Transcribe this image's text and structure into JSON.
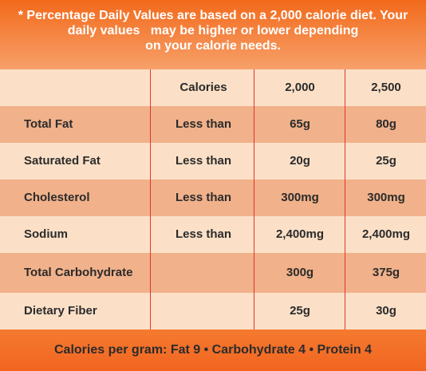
{
  "header": {
    "line1": "* Percentage Daily Values are based on a 2,000 calorie diet. Your",
    "line2": "daily values   may be higher or lower depending",
    "line3": "on your calorie needs."
  },
  "table": {
    "rows": [
      [
        "",
        "Calories",
        "2,000",
        "2,500"
      ],
      [
        "Total Fat",
        "Less than",
        "65g",
        "80g"
      ],
      [
        "Saturated Fat",
        "Less than",
        "20g",
        "25g"
      ],
      [
        "Cholesterol",
        "Less than",
        "300mg",
        "300mg"
      ],
      [
        "Sodium",
        "Less than",
        "2,400mg",
        "2,400mg"
      ],
      [
        "Total Carbohydrate",
        "",
        "300g",
        "375g"
      ],
      [
        "Dietary Fiber",
        "",
        "25g",
        "30g"
      ]
    ]
  },
  "footer": {
    "text": "Calories per gram: Fat 9 • Carbohydrate 4 • Protein 4"
  },
  "colors": {
    "header_orange": "#f26a1b",
    "row_light": "#fbe0c7",
    "row_dark": "#f1b18a",
    "divider_red": "#e2352b"
  }
}
